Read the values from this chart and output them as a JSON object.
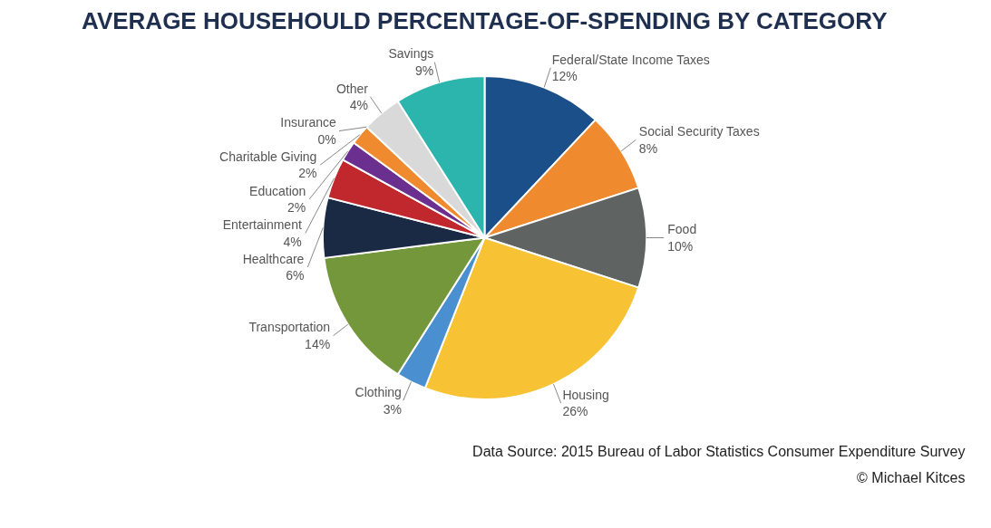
{
  "chart_data": {
    "type": "pie",
    "title": "AVERAGE HOUSEHOULD PERCENTAGE-OF-SPENDING BY CATEGORY",
    "categories": [
      "Federal/State Income Taxes",
      "Social Security Taxes",
      "Food",
      "Housing",
      "Clothing",
      "Transportation",
      "Healthcare",
      "Entertainment",
      "Education",
      "Charitable Giving",
      "Insurance",
      "Other",
      "Savings"
    ],
    "values": [
      12,
      8,
      10,
      26,
      3,
      14,
      6,
      4,
      2,
      2,
      0,
      4,
      9
    ],
    "value_labels": [
      "12%",
      "8%",
      "10%",
      "26%",
      "3%",
      "14%",
      "6%",
      "4%",
      "2%",
      "2%",
      "0%",
      "4%",
      "9%"
    ],
    "colors": [
      "#1a4f8a",
      "#ef8a2f",
      "#5f6462",
      "#f7c234",
      "#4a90d0",
      "#73973a",
      "#1a2a44",
      "#c0282e",
      "#6b2f8f",
      "#ef8a2f",
      "#222222",
      "#d9d9d9",
      "#2bb5ad"
    ],
    "annotations": [
      "© Michael Kitces",
      "Data Source: 2015 Bureau of Labor Statistics Consumer Expenditure Survey"
    ]
  }
}
